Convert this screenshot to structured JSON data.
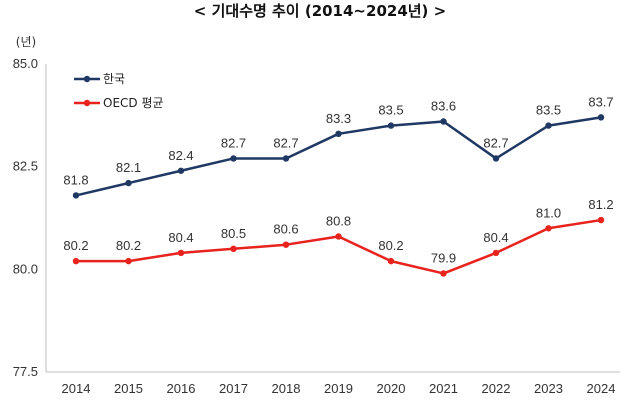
{
  "chart_data": {
    "type": "line",
    "title": "< 기대수명  추이 (2014~2024년) >",
    "ylabel": "(년)",
    "xlabel": "",
    "categories": [
      "2014",
      "2015",
      "2016",
      "2017",
      "2018",
      "2019",
      "2020",
      "2021",
      "2022",
      "2023",
      "2024"
    ],
    "ylim": [
      77.5,
      85.0
    ],
    "yticks": [
      "77.5",
      "80.0",
      "82.5",
      "85.0"
    ],
    "grid": false,
    "legend_position": "top-left",
    "series": [
      {
        "name": "한국",
        "color": "#1f3864",
        "values": [
          81.8,
          82.1,
          82.4,
          82.7,
          82.7,
          83.3,
          83.5,
          83.6,
          82.7,
          83.5,
          83.7
        ],
        "labels": [
          "81.8",
          "82.1",
          "82.4",
          "82.7",
          "82.7",
          "83.3",
          "83.5",
          "83.6",
          "82.7",
          "83.5",
          "83.7"
        ]
      },
      {
        "name": "OECD 평균",
        "color": "#e8221c",
        "values": [
          80.2,
          80.2,
          80.4,
          80.5,
          80.6,
          80.8,
          80.2,
          79.9,
          80.4,
          81.0,
          81.2
        ],
        "labels": [
          "80.2",
          "80.2",
          "80.4",
          "80.5",
          "80.6",
          "80.8",
          "80.2",
          "79.9",
          "80.4",
          "81.0",
          "81.2"
        ]
      }
    ]
  }
}
